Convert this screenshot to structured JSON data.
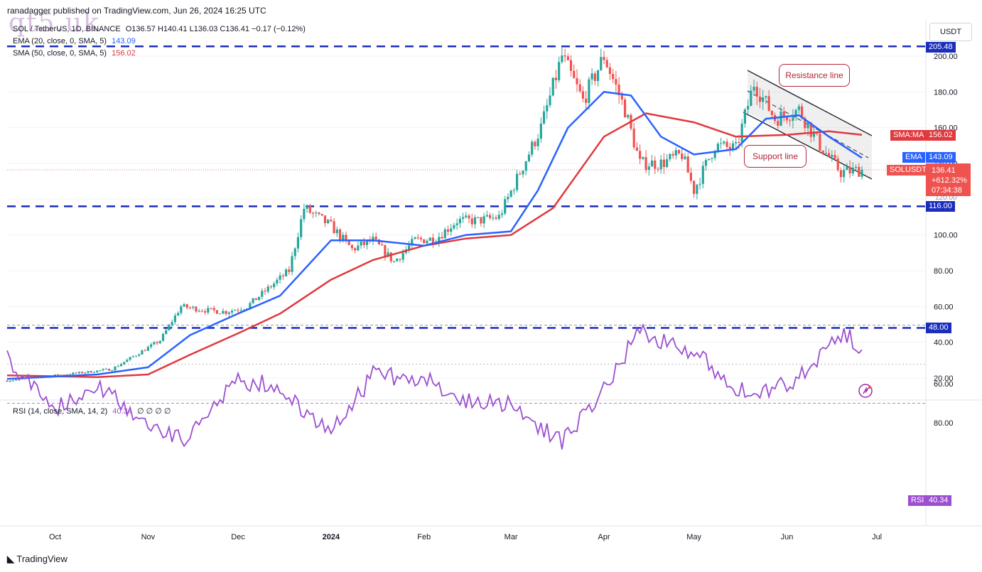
{
  "header": {
    "publisher": "ranadagger published on TradingView.com, Jun 26, 2024 16:25 UTC",
    "watermark": "qt5.uk"
  },
  "legend": {
    "symbol": "SOL / TetherUS, 1D, BINANCE",
    "ohlc": "O136.57 H140.41 L136.03 C136.41 −0.17 (−0.12%)",
    "ema_label": "EMA (20, close, 0, SMA, 5)",
    "ema_value": "143.09",
    "sma_label": "SMA (50, close, 0, SMA, 5)",
    "sma_value": "156.02",
    "rsi_label": "RSI (14, close, SMA, 14, 2)",
    "rsi_value": "40.34",
    "rsi_extra": "∅ ∅ ∅ ∅"
  },
  "toolbar": {
    "currency": "USDT"
  },
  "price_tags": {
    "resistance_level": "205.48",
    "support_level": "116.00",
    "low_level": "48.00",
    "sma_tag_label": "SMA:MA",
    "sma_tag_value": "156.02",
    "ema_tag_label": "EMA",
    "ema_tag_value": "143.09",
    "symbol_tag": "SOLUSDT",
    "price": "136.41",
    "change": "+612.32%",
    "countdown": "07:34:38",
    "rsi_tag_label": "RSI",
    "rsi_tag_value": "40.34",
    "hidden_tick": "120.00"
  },
  "annotations": {
    "resistance_line": "Resistance line",
    "support_line": "Support line"
  },
  "footer": {
    "brand": "TradingView"
  },
  "colors": {
    "up": "#26a69a",
    "down": "#ef5350",
    "ema": "#2962ff",
    "sma": "#e0393e",
    "rsi": "#9c4fd0",
    "level": "#1a2dbd",
    "channel": "#2b2f3a"
  },
  "chart_data": [
    {
      "type": "candlestick",
      "series": [
        {
          "name": "SOL / TetherUS, 1D, BINANCE",
          "points": [
            [
              "2023-09-15",
              18.5
            ],
            [
              "2023-10-01",
              21.5
            ],
            [
              "2023-10-10",
              23
            ],
            [
              "2023-10-20",
              25
            ],
            [
              "2023-10-30",
              35
            ],
            [
              "2023-11-05",
              41
            ],
            [
              "2023-11-12",
              60
            ],
            [
              "2023-11-20",
              58
            ],
            [
              "2023-11-27",
              57
            ],
            [
              "2023-12-04",
              60
            ],
            [
              "2023-12-11",
              70
            ],
            [
              "2023-12-18",
              80
            ],
            [
              "2023-12-23",
              115
            ],
            [
              "2024-01-01",
              105
            ],
            [
              "2024-01-08",
              92
            ],
            [
              "2024-01-15",
              97
            ],
            [
              "2024-01-22",
              85
            ],
            [
              "2024-01-29",
              97
            ],
            [
              "2024-02-05",
              98
            ],
            [
              "2024-02-12",
              108
            ],
            [
              "2024-02-19",
              108
            ],
            [
              "2024-02-26",
              110
            ],
            [
              "2024-03-04",
              135
            ],
            [
              "2024-03-11",
              160
            ],
            [
              "2024-03-18",
              200
            ],
            [
              "2024-03-25",
              175
            ],
            [
              "2024-04-01",
              200
            ],
            [
              "2024-04-08",
              170
            ],
            [
              "2024-04-13",
              140
            ],
            [
              "2024-04-20",
              140
            ],
            [
              "2024-04-27",
              145
            ],
            [
              "2024-05-01",
              125
            ],
            [
              "2024-05-08",
              150
            ],
            [
              "2024-05-15",
              148
            ],
            [
              "2024-05-21",
              185
            ],
            [
              "2024-05-28",
              165
            ],
            [
              "2024-06-05",
              170
            ],
            [
              "2024-06-12",
              150
            ],
            [
              "2024-06-19",
              135
            ],
            [
              "2024-06-26",
              136.41
            ]
          ]
        }
      ],
      "x_ticks": [
        "Oct",
        "Nov",
        "Dec",
        "2024",
        "Feb",
        "Mar",
        "Apr",
        "May",
        "Jun",
        "Jul"
      ],
      "y_ticks": [
        "20.00",
        "40.00",
        "60.00",
        "80.00",
        "100.00",
        "120.00",
        "140.00",
        "160.00",
        "180.00",
        "200.00"
      ],
      "ylim": [
        15,
        210
      ],
      "levels": [
        205.48,
        116.0,
        48.0
      ]
    },
    {
      "type": "line",
      "series": [
        {
          "name": "EMA (20, close, 0, SMA, 5)",
          "points": [
            [
              "2023-09-15",
              19.5
            ],
            [
              "2023-10-15",
              22
            ],
            [
              "2023-11-01",
              26
            ],
            [
              "2023-11-15",
              44
            ],
            [
              "2023-12-01",
              56
            ],
            [
              "2023-12-15",
              66
            ],
            [
              "2024-01-01",
              97
            ],
            [
              "2024-01-15",
              97
            ],
            [
              "2024-02-01",
              94
            ],
            [
              "2024-02-15",
              100
            ],
            [
              "2024-03-01",
              102
            ],
            [
              "2024-03-10",
              125
            ],
            [
              "2024-03-20",
              160
            ],
            [
              "2024-04-01",
              180
            ],
            [
              "2024-04-10",
              178
            ],
            [
              "2024-04-20",
              155
            ],
            [
              "2024-05-01",
              145
            ],
            [
              "2024-05-15",
              148
            ],
            [
              "2024-05-25",
              165
            ],
            [
              "2024-06-05",
              167
            ],
            [
              "2024-06-15",
              155
            ],
            [
              "2024-06-26",
              143.09
            ]
          ]
        },
        {
          "name": "SMA (50, close, 0, SMA, 5)",
          "points": [
            [
              "2023-09-15",
              21.5
            ],
            [
              "2023-10-15",
              20.5
            ],
            [
              "2023-11-01",
              22
            ],
            [
              "2023-11-15",
              33
            ],
            [
              "2023-12-01",
              45
            ],
            [
              "2023-12-15",
              56
            ],
            [
              "2024-01-01",
              75
            ],
            [
              "2024-01-15",
              86
            ],
            [
              "2024-02-01",
              94
            ],
            [
              "2024-02-15",
              98
            ],
            [
              "2024-03-01",
              100
            ],
            [
              "2024-03-15",
              115
            ],
            [
              "2024-04-01",
              155
            ],
            [
              "2024-04-15",
              168
            ],
            [
              "2024-05-01",
              163
            ],
            [
              "2024-05-15",
              155
            ],
            [
              "2024-06-01",
              156
            ],
            [
              "2024-06-15",
              158
            ],
            [
              "2024-06-26",
              156.02
            ]
          ]
        }
      ]
    },
    {
      "type": "line",
      "series": [
        {
          "name": "RSI (14, close, SMA, 14, 2)",
          "points": [
            [
              "2023-09-15",
              48
            ],
            [
              "2023-10-01",
              72
            ],
            [
              "2023-10-15",
              60
            ],
            [
              "2023-11-01",
              82
            ],
            [
              "2023-11-15",
              88
            ],
            [
              "2023-12-01",
              58
            ],
            [
              "2023-12-15",
              62
            ],
            [
              "2024-01-01",
              86
            ],
            [
              "2024-01-15",
              55
            ],
            [
              "2024-02-01",
              58
            ],
            [
              "2024-02-15",
              68
            ],
            [
              "2024-03-01",
              70
            ],
            [
              "2024-03-18",
              90
            ],
            [
              "2024-04-01",
              62
            ],
            [
              "2024-04-13",
              32
            ],
            [
              "2024-05-01",
              45
            ],
            [
              "2024-05-21",
              68
            ],
            [
              "2024-06-05",
              57
            ],
            [
              "2024-06-19",
              35
            ],
            [
              "2024-06-26",
              40.34
            ]
          ]
        }
      ],
      "y_ticks": [
        "60.00",
        "80.00"
      ],
      "bands": [
        30,
        70
      ],
      "ylim": [
        25,
        95
      ]
    }
  ]
}
